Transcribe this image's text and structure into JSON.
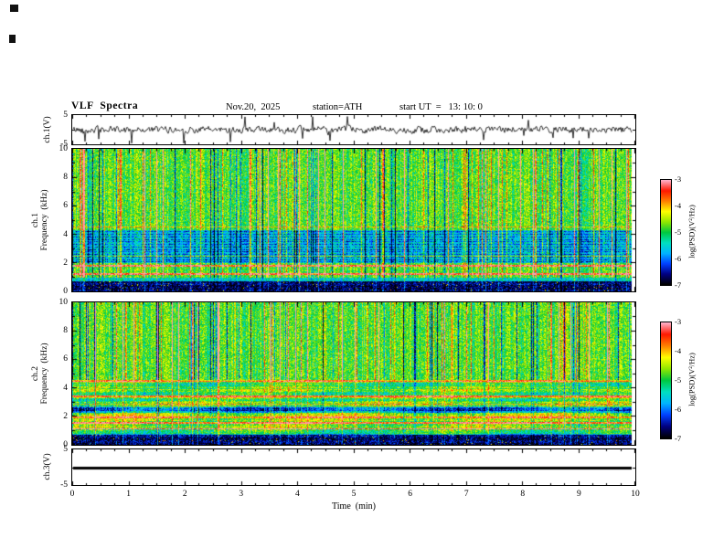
{
  "header": {
    "title": "VLF  Spectra",
    "date": "Nov.20,  2025",
    "station": "station=ATH",
    "start_ut": "start UT  =   13: 10: 0"
  },
  "xaxis": {
    "label": "Time  (min)",
    "ticks": [
      0,
      1,
      2,
      3,
      4,
      5,
      6,
      7,
      8,
      9,
      10
    ],
    "range": [
      0,
      10
    ]
  },
  "panels": {
    "ch1_wave": {
      "ylabel": "ch.1(V)",
      "yticks": [
        5,
        -5
      ],
      "ylim": [
        -5,
        5
      ]
    },
    "ch1_spec": {
      "ylabel_line1": "ch.1",
      "ylabel_line2": "Frequency  (kHz)",
      "yticks": [
        10,
        8,
        6,
        4,
        2,
        0
      ],
      "ylim": [
        0,
        10
      ]
    },
    "ch2_spec": {
      "ylabel_line1": "ch.2",
      "ylabel_line2": "Frequency  (kHz)",
      "yticks": [
        10,
        8,
        6,
        4,
        2,
        0
      ],
      "ylim": [
        0,
        10
      ]
    },
    "ch3_wave": {
      "ylabel": "ch.3(V)",
      "yticks": [
        5,
        -5
      ],
      "ylim": [
        -5,
        5
      ]
    }
  },
  "colorbar": {
    "label": "log(PSD)(V²/Hz)",
    "ticks": [
      -3,
      -4,
      -5,
      -6,
      -7
    ],
    "range": [
      -7,
      -3
    ],
    "stops": [
      "#000000",
      "#000080",
      "#0040ff",
      "#00b4ff",
      "#00e0c0",
      "#00c840",
      "#90e800",
      "#ffff00",
      "#ff8000",
      "#ff1800",
      "#ffb0c8"
    ]
  },
  "chart_data": [
    {
      "type": "line",
      "name": "ch.1 waveform",
      "xlabel": "Time (min)",
      "xlim": [
        0,
        10
      ],
      "ylabel": "ch.1(V)",
      "ylim": [
        -5,
        5
      ],
      "yticks": [
        5,
        -5
      ],
      "data_end_min": 9.93,
      "description": "Dense broadband noise waveform centered on 0 V; typical excursions about ±2 V with frequent impulsive spikes reaching roughly ±4.5 V throughout the 0–9.93 min record."
    },
    {
      "type": "heatmap",
      "name": "ch.1 spectrogram",
      "xlabel": "Time (min)",
      "xlim": [
        0,
        10
      ],
      "ylabel": "ch.1 Frequency (kHz)",
      "ylim": [
        0,
        10
      ],
      "yticks": [
        10,
        8,
        6,
        4,
        2,
        0
      ],
      "zlabel": "log(PSD)(V²/Hz)",
      "zlim": [
        -7,
        -3
      ],
      "features": [
        "overall green background near -4.8",
        "many narrow full-height vertical sferic streaks (yellow/red, up to about -3.3) at random times",
        "scattered darker blue vertical gaps",
        "blue attenuated band roughly 2-4 kHz (about -6)",
        "nearly black band below about 0.8 kHz (about -6.8)",
        "thin yellow/red horizontal harmonic lines near 1.2 and 1.9 kHz"
      ]
    },
    {
      "type": "heatmap",
      "name": "ch.2 spectrogram",
      "xlabel": "Time (min)",
      "xlim": [
        0,
        10
      ],
      "ylabel": "ch.2 Frequency (kHz)",
      "ylim": [
        0,
        10
      ],
      "yticks": [
        10,
        8,
        6,
        4,
        2,
        0
      ],
      "zlabel": "log(PSD)(V²/Hz)",
      "zlim": [
        -7,
        -3
      ],
      "features": [
        "above about 4.5 kHz similar to ch.1: green background with vertical sferic streaks",
        "red/yellow horizontal line near 4.5 kHz",
        "0.8-4.5 kHz horizontally striated: green patches, darker rows near 2.3-2.7 kHz, thin yellow lines near 1.2, 1.6, 2.0, 2.9 and 3.5 kHz",
        "nearly black band below about 0.8 kHz"
      ]
    },
    {
      "type": "line",
      "name": "ch.3 waveform",
      "xlabel": "Time (min)",
      "xlim": [
        0,
        10
      ],
      "ylabel": "ch.3(V)",
      "ylim": [
        -5,
        5
      ],
      "yticks": [
        5,
        -5
      ],
      "data_end_min": 9.93,
      "description": "Constant thick flat trace at 0 V for the whole record (no signal)."
    }
  ]
}
